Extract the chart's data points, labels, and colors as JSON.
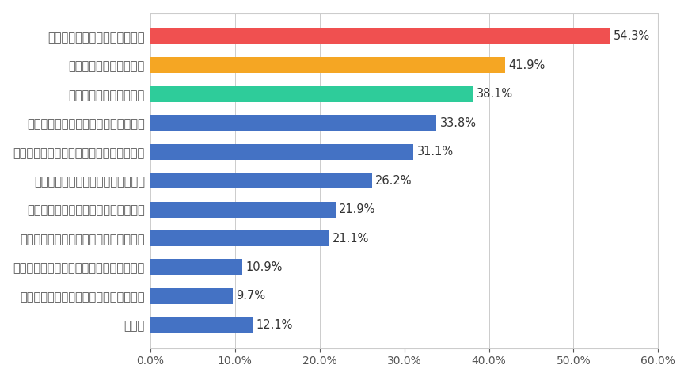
{
  "categories": [
    "その他",
    "核兵器および原子力発電を廃絶すること",
    "病気や感染症からすべての人々を守ること",
    "気候変動や自然災害への対策を行うこと",
    "環境や生態系の破壊を食い止めること",
    "経済格差や雇用の問題をなくすこと",
    "各国の政情が安定し、国際協力が進むこと",
    "質の高い教育をみんなに提供すること",
    "貧困や飢餓をなくすこと",
    "戦争や紛争をなくすこと",
    "人権の抑圧や差別をなくすこと"
  ],
  "values": [
    12.1,
    9.7,
    10.9,
    21.1,
    21.9,
    26.2,
    31.1,
    33.8,
    38.1,
    41.9,
    54.3
  ],
  "colors": [
    "#4472C4",
    "#4472C4",
    "#4472C4",
    "#4472C4",
    "#4472C4",
    "#4472C4",
    "#4472C4",
    "#4472C4",
    "#2ECC9A",
    "#F5A623",
    "#F05050"
  ],
  "xlim": [
    0,
    60
  ],
  "xtick_values": [
    0,
    10,
    20,
    30,
    40,
    50,
    60
  ],
  "xlabel": "",
  "background_color": "#ffffff",
  "bar_height": 0.55,
  "label_fontsize": 10.5,
  "value_fontsize": 10.5,
  "tick_fontsize": 10,
  "label_color": "#555555"
}
